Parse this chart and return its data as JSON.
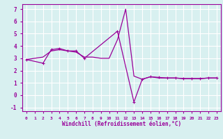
{
  "xlabel": "Windchill (Refroidissement éolien,°C)",
  "x": [
    0,
    1,
    2,
    3,
    4,
    5,
    6,
    7,
    8,
    9,
    10,
    11,
    12,
    13,
    14,
    15,
    16,
    17,
    18,
    19,
    20,
    21,
    22,
    23
  ],
  "line1": [
    2.9,
    3.0,
    3.1,
    3.6,
    3.7,
    3.6,
    3.5,
    3.1,
    3.1,
    3.0,
    3.0,
    4.5,
    7.0,
    1.55,
    1.3,
    1.5,
    1.4,
    1.4,
    1.4,
    1.35,
    1.35,
    1.35,
    1.4,
    1.4
  ],
  "line2_x": [
    0,
    2,
    3,
    4,
    5,
    6,
    7,
    11,
    13,
    14,
    15,
    16,
    17,
    18,
    19,
    20,
    21,
    22,
    23
  ],
  "line2_y": [
    2.9,
    2.6,
    3.7,
    3.8,
    3.6,
    3.6,
    3.0,
    5.2,
    -0.55,
    1.3,
    1.5,
    1.45,
    1.4,
    1.4,
    1.35,
    1.35,
    1.35,
    1.4,
    1.4
  ],
  "line_color": "#990099",
  "bg_color": "#d8f0f0",
  "grid_color": "#ffffff",
  "xlim_min": -0.5,
  "xlim_max": 23.5,
  "ylim_min": -1.3,
  "ylim_max": 7.4,
  "yticks": [
    -1,
    0,
    1,
    2,
    3,
    4,
    5,
    6,
    7
  ],
  "xticks": [
    0,
    1,
    2,
    3,
    4,
    5,
    6,
    7,
    8,
    9,
    10,
    11,
    12,
    13,
    14,
    15,
    16,
    17,
    18,
    19,
    20,
    21,
    22,
    23
  ]
}
